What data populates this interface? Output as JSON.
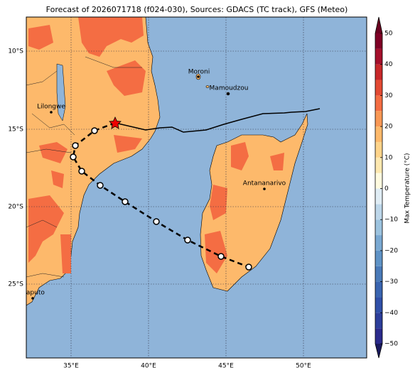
{
  "title": "Forecast of 2026071718 (f024-030), Sources: GDACS (TC track), GFS (Meteo)",
  "lon_ticks": [
    "35°E",
    "40°E",
    "45°E",
    "50°E"
  ],
  "lat_ticks": [
    "10°S",
    "15°S",
    "20°S",
    "25°S"
  ],
  "cities": [
    "Moroni",
    "Mamoudzou",
    "Lilongwe",
    "Antananarivo",
    "Maputo"
  ],
  "colorbar": {
    "label": "Max Temperature (°C)",
    "clim": [
      -50,
      50
    ],
    "ticks": [
      {
        "value": -50,
        "label": "−50"
      },
      {
        "value": -40,
        "label": "−40"
      },
      {
        "value": -30,
        "label": "−30"
      },
      {
        "value": -20,
        "label": "−20"
      },
      {
        "value": -10,
        "label": "−10"
      },
      0,
      10,
      20,
      30,
      40,
      50
    ],
    "colors": [
      "#2b2b8c",
      "#2c3e9a",
      "#3050a8",
      "#3a65b0",
      "#4a7ab8",
      "#5f93c6",
      "#7aa9d2",
      "#9cc3df",
      "#bdd7ea",
      "#e0edf5",
      "#fffbe0",
      "#fee9b0",
      "#fed48a",
      "#fdb96b",
      "#f99855",
      "#f46d43",
      "#e34a33",
      "#c8282a",
      "#a50f2c",
      "#7f0026"
    ],
    "under": "#1a1a5e",
    "over": "#6a0020"
  }
}
